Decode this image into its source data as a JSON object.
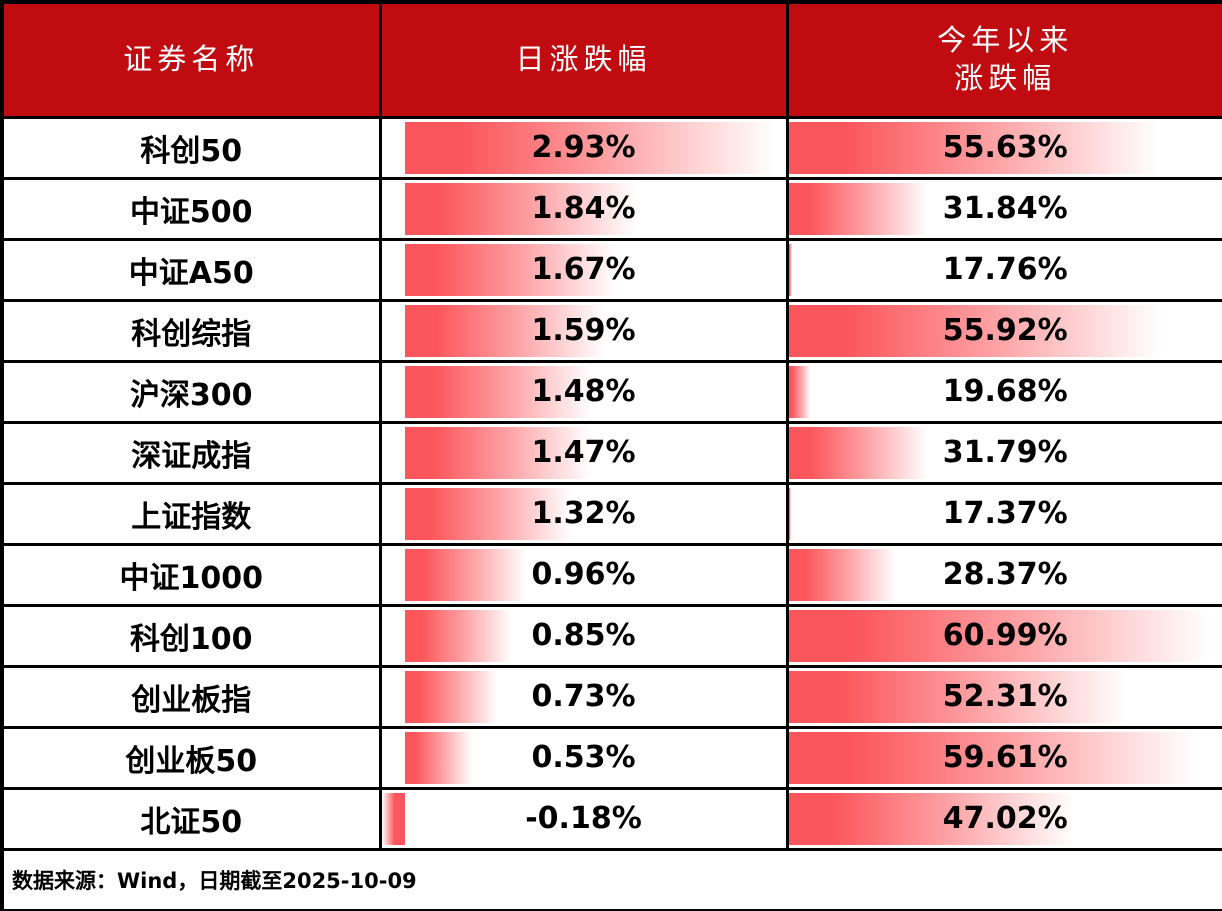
{
  "table": {
    "columns": [
      {
        "label": "证券名称"
      },
      {
        "label": "日涨跌幅"
      },
      {
        "label": "今年以来",
        "label2": "涨跌幅"
      }
    ],
    "rows": [
      {
        "name": "科创50",
        "daily": "2.93%",
        "ytd": "55.63%"
      },
      {
        "name": "中证500",
        "daily": "1.84%",
        "ytd": "31.84%"
      },
      {
        "name": "中证A50",
        "daily": "1.67%",
        "ytd": "17.76%"
      },
      {
        "name": "科创综指",
        "daily": "1.59%",
        "ytd": "55.92%"
      },
      {
        "name": "沪深300",
        "daily": "1.48%",
        "ytd": "19.68%"
      },
      {
        "name": "深证成指",
        "daily": "1.47%",
        "ytd": "31.79%"
      },
      {
        "name": "上证指数",
        "daily": "1.32%",
        "ytd": "17.37%"
      },
      {
        "name": "中证1000",
        "daily": "0.96%",
        "ytd": "28.37%"
      },
      {
        "name": "科创100",
        "daily": "0.85%",
        "ytd": "60.99%"
      },
      {
        "name": "创业板指",
        "daily": "0.73%",
        "ytd": "52.31%"
      },
      {
        "name": "创业板50",
        "daily": "0.53%",
        "ytd": "59.61%"
      },
      {
        "name": "北证50",
        "daily": "-0.18%",
        "ytd": "47.02%"
      }
    ]
  },
  "chart_data": {
    "type": "table",
    "title": "",
    "columns": [
      "证券名称",
      "日涨跌幅",
      "今年以来涨跌幅"
    ],
    "categories": [
      "科创50",
      "中证500",
      "中证A50",
      "科创综指",
      "沪深300",
      "深证成指",
      "上证指数",
      "中证1000",
      "科创100",
      "创业板指",
      "创业板50",
      "北证50"
    ],
    "series": [
      {
        "name": "日涨跌幅",
        "values": [
          2.93,
          1.84,
          1.67,
          1.59,
          1.48,
          1.47,
          1.32,
          0.96,
          0.85,
          0.73,
          0.53,
          -0.18
        ]
      },
      {
        "name": "今年以来涨跌幅",
        "values": [
          55.63,
          31.84,
          17.76,
          55.92,
          19.68,
          31.79,
          17.37,
          28.37,
          60.99,
          52.31,
          59.61,
          47.02
        ]
      }
    ],
    "databar_scaling": {
      "daily": {
        "min": -0.18,
        "max": 2.93
      },
      "ytd": {
        "min": 17.37,
        "max": 60.99
      }
    }
  },
  "footer": {
    "text": "数据来源：Wind，日期截至2025-10-09"
  },
  "colors": {
    "header_bg": "#c00b10",
    "header_text": "#ffffff",
    "bar_red": "#fb565b",
    "border": "#000000",
    "body_text": "#000000",
    "row_bg": "#ffffff"
  }
}
